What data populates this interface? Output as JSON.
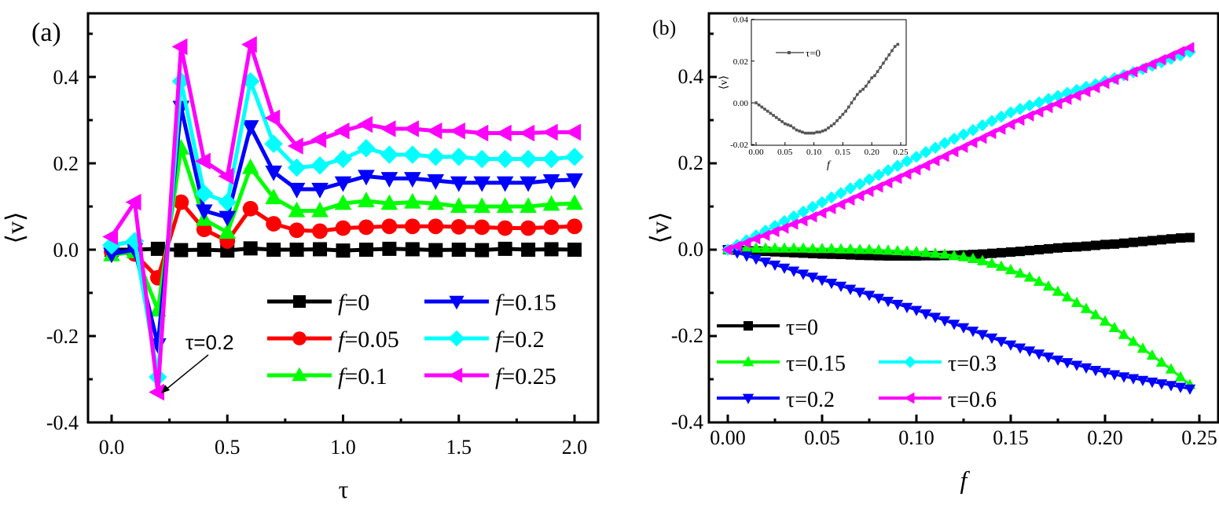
{
  "chart_data": [
    {
      "panel": "(a)",
      "type": "line",
      "xlabel": "τ",
      "ylabel": "⟨v⟩",
      "xlim": [
        -0.1,
        2.1
      ],
      "ylim": [
        -0.4,
        0.5
      ],
      "xticks": [
        0.0,
        0.5,
        1.0,
        1.5,
        2.0
      ],
      "xtick_labels": [
        "0.0",
        "0.5",
        "1.0",
        "1.5",
        "2.0"
      ],
      "yticks": [
        -0.4,
        -0.2,
        0.0,
        0.2,
        0.4
      ],
      "ytick_labels": [
        "-0.4",
        "-0.2",
        "0.0",
        "0.2",
        "0.4"
      ],
      "grid": false,
      "legend_position": "lower-right",
      "annotation": {
        "text": "τ=0.2",
        "points_to": [
          0.2,
          -0.33
        ]
      },
      "x": [
        0.0,
        0.1,
        0.2,
        0.3,
        0.4,
        0.5,
        0.6,
        0.7,
        0.8,
        0.9,
        1.0,
        1.1,
        1.2,
        1.3,
        1.4,
        1.5,
        1.6,
        1.7,
        1.8,
        1.9,
        2.0
      ],
      "series": [
        {
          "name_prefix": "f",
          "name_value": "=0",
          "color": "#000000",
          "marker": "square",
          "values": [
            0.0,
            0.0,
            0.002,
            -0.001,
            0.0,
            -0.002,
            0.003,
            0.0,
            0.0,
            0.001,
            -0.002,
            0.0,
            0.002,
            0.001,
            -0.001,
            0.0,
            -0.001,
            0.002,
            0.0,
            0.001,
            0.0
          ]
        },
        {
          "name_prefix": "f",
          "name_value": "=0.05",
          "color": "#ff0000",
          "marker": "circle",
          "values": [
            -0.005,
            -0.01,
            -0.065,
            0.11,
            0.047,
            0.02,
            0.095,
            0.06,
            0.045,
            0.043,
            0.05,
            0.052,
            0.054,
            0.054,
            0.054,
            0.053,
            0.052,
            0.05,
            0.05,
            0.052,
            0.054
          ]
        },
        {
          "name_prefix": "f",
          "name_value": "=0.1",
          "color": "#00ff00",
          "marker": "triangle-up",
          "values": [
            -0.012,
            -0.005,
            -0.14,
            0.235,
            0.07,
            0.04,
            0.19,
            0.12,
            0.09,
            0.09,
            0.107,
            0.113,
            0.107,
            0.11,
            0.107,
            0.1,
            0.1,
            0.1,
            0.1,
            0.105,
            0.107
          ]
        },
        {
          "name_prefix": "f",
          "name_value": "=0.15",
          "color": "#0000ff",
          "marker": "triangle-down",
          "values": [
            -0.01,
            0.0,
            -0.22,
            0.33,
            0.09,
            0.075,
            0.285,
            0.18,
            0.14,
            0.14,
            0.155,
            0.17,
            0.165,
            0.165,
            0.16,
            0.155,
            0.155,
            0.155,
            0.155,
            0.16,
            0.162
          ]
        },
        {
          "name_prefix": "f",
          "name_value": "=0.2",
          "color": "#00ffff",
          "marker": "diamond",
          "values": [
            0.01,
            0.02,
            -0.295,
            0.39,
            0.13,
            0.11,
            0.39,
            0.245,
            0.19,
            0.195,
            0.21,
            0.235,
            0.22,
            0.22,
            0.215,
            0.215,
            0.21,
            0.21,
            0.21,
            0.21,
            0.215
          ]
        },
        {
          "name_prefix": "f",
          "name_value": "=0.25",
          "color": "#ff00ff",
          "marker": "triangle-left",
          "values": [
            0.03,
            0.11,
            -0.33,
            0.47,
            0.205,
            0.17,
            0.475,
            0.305,
            0.24,
            0.255,
            0.275,
            0.29,
            0.28,
            0.28,
            0.275,
            0.275,
            0.27,
            0.27,
            0.27,
            0.272,
            0.272
          ]
        }
      ]
    },
    {
      "panel": "(b)",
      "type": "line",
      "xlabel": "f",
      "ylabel": "⟨v⟩",
      "xlim": [
        -0.01,
        0.26
      ],
      "ylim": [
        -0.4,
        0.5
      ],
      "xticks": [
        0.0,
        0.05,
        0.1,
        0.15,
        0.2,
        0.25
      ],
      "xtick_labels": [
        "0.00",
        "0.05",
        "0.10",
        "0.15",
        "0.20",
        "0.25"
      ],
      "yticks": [
        -0.4,
        -0.2,
        0.0,
        0.2,
        0.4
      ],
      "ytick_labels": [
        "-0.4",
        "-0.2",
        "0.0",
        "0.2",
        "0.4"
      ],
      "grid": false,
      "legend_position": "lower-left",
      "x": [
        0,
        0.005,
        0.01,
        0.015,
        0.02,
        0.025,
        0.03,
        0.035,
        0.04,
        0.045,
        0.05,
        0.055,
        0.06,
        0.065,
        0.07,
        0.075,
        0.08,
        0.085,
        0.09,
        0.095,
        0.1,
        0.105,
        0.11,
        0.115,
        0.12,
        0.125,
        0.13,
        0.135,
        0.14,
        0.145,
        0.15,
        0.155,
        0.16,
        0.165,
        0.17,
        0.175,
        0.18,
        0.185,
        0.19,
        0.195,
        0.2,
        0.205,
        0.21,
        0.215,
        0.22,
        0.225,
        0.23,
        0.235,
        0.24,
        0.245
      ],
      "series": [
        {
          "name": "τ=0",
          "color": "#000000",
          "marker": "square",
          "values": [
            0,
            -0.001,
            -0.002,
            -0.003,
            -0.004,
            -0.005,
            -0.006,
            -0.007,
            -0.008,
            -0.009,
            -0.01,
            -0.0105,
            -0.011,
            -0.012,
            -0.013,
            -0.0135,
            -0.014,
            -0.0145,
            -0.0145,
            -0.0145,
            -0.0145,
            -0.014,
            -0.014,
            -0.0135,
            -0.013,
            -0.012,
            -0.011,
            -0.01,
            -0.0085,
            -0.007,
            -0.0055,
            -0.004,
            -0.002,
            0.0,
            0.002,
            0.004,
            0.0055,
            0.0065,
            0.008,
            0.01,
            0.012,
            0.013,
            0.015,
            0.017,
            0.019,
            0.021,
            0.023,
            0.025,
            0.027,
            0.028
          ]
        },
        {
          "name": "τ=0.15",
          "color": "#00ff00",
          "marker": "triangle-up",
          "values": [
            0,
            0.002,
            0.003,
            0.003,
            0.003,
            0.003,
            0.003,
            0.003,
            0.003,
            0.002,
            0.002,
            0.002,
            0.001,
            0.001,
            0.0,
            0.0,
            -0.001,
            -0.002,
            -0.003,
            -0.004,
            -0.005,
            -0.007,
            -0.009,
            -0.011,
            -0.014,
            -0.017,
            -0.021,
            -0.026,
            -0.032,
            -0.039,
            -0.047,
            -0.055,
            -0.064,
            -0.074,
            -0.085,
            -0.097,
            -0.11,
            -0.123,
            -0.137,
            -0.151,
            -0.166,
            -0.181,
            -0.197,
            -0.213,
            -0.229,
            -0.245,
            -0.261,
            -0.277,
            -0.295,
            -0.313
          ]
        },
        {
          "name": "τ=0.2",
          "color": "#0000ff",
          "marker": "triangle-down",
          "values": [
            0,
            -0.007,
            -0.014,
            -0.021,
            -0.028,
            -0.035,
            -0.042,
            -0.049,
            -0.056,
            -0.063,
            -0.07,
            -0.077,
            -0.084,
            -0.091,
            -0.098,
            -0.105,
            -0.112,
            -0.119,
            -0.126,
            -0.133,
            -0.14,
            -0.148,
            -0.156,
            -0.164,
            -0.172,
            -0.18,
            -0.188,
            -0.196,
            -0.204,
            -0.212,
            -0.22,
            -0.227,
            -0.234,
            -0.241,
            -0.248,
            -0.255,
            -0.261,
            -0.267,
            -0.273,
            -0.279,
            -0.284,
            -0.289,
            -0.294,
            -0.298,
            -0.302,
            -0.306,
            -0.31,
            -0.314,
            -0.318,
            -0.322
          ]
        },
        {
          "name": "τ=0.3",
          "color": "#00ffff",
          "marker": "diamond",
          "values": [
            0,
            0.011,
            0.022,
            0.033,
            0.044,
            0.055,
            0.066,
            0.077,
            0.088,
            0.099,
            0.11,
            0.121,
            0.131,
            0.142,
            0.152,
            0.163,
            0.173,
            0.184,
            0.194,
            0.205,
            0.215,
            0.226,
            0.236,
            0.247,
            0.257,
            0.267,
            0.277,
            0.288,
            0.298,
            0.308,
            0.318,
            0.326,
            0.334,
            0.341,
            0.349,
            0.356,
            0.363,
            0.37,
            0.377,
            0.383,
            0.39,
            0.397,
            0.404,
            0.411,
            0.418,
            0.426,
            0.434,
            0.442,
            0.45,
            0.458
          ]
        },
        {
          "name": "τ=0.6",
          "color": "#ff00ff",
          "marker": "triangle-left",
          "values": [
            0,
            0.008,
            0.016,
            0.025,
            0.033,
            0.042,
            0.05,
            0.059,
            0.067,
            0.076,
            0.085,
            0.095,
            0.105,
            0.115,
            0.125,
            0.135,
            0.145,
            0.155,
            0.165,
            0.175,
            0.185,
            0.195,
            0.206,
            0.216,
            0.227,
            0.237,
            0.248,
            0.258,
            0.269,
            0.279,
            0.29,
            0.3,
            0.31,
            0.319,
            0.329,
            0.338,
            0.348,
            0.357,
            0.366,
            0.375,
            0.385,
            0.394,
            0.403,
            0.412,
            0.421,
            0.43,
            0.44,
            0.449,
            0.459,
            0.468
          ]
        }
      ],
      "inset": {
        "type": "line",
        "xlabel": "f",
        "ylabel": "⟨v⟩",
        "xlim": [
          -0.008,
          0.26
        ],
        "ylim": [
          -0.02,
          0.04
        ],
        "xtick_labels": [
          "0.00",
          "0.05",
          "0.10",
          "0.15",
          "0.20",
          "0.25"
        ],
        "xticks": [
          0.0,
          0.05,
          0.1,
          0.15,
          0.2,
          0.25
        ],
        "ytick_labels": [
          "-0.02",
          "0.00",
          "0.02",
          "0.04"
        ],
        "yticks": [
          -0.02,
          0.0,
          0.02,
          0.04
        ],
        "legend": "τ=0",
        "color": "#555555",
        "marker": "square"
      }
    }
  ]
}
